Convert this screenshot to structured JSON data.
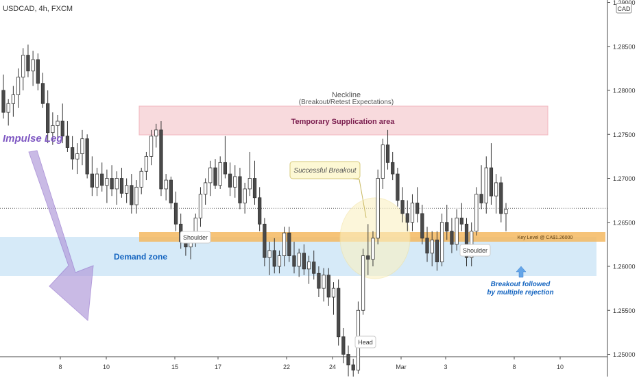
{
  "header": {
    "symbol": "USDCAD, 4h, FXCM"
  },
  "price_axis": {
    "currency_badge": "CAD"
  },
  "chart_data": {
    "type": "candlestick",
    "title": "USDCAD, 4h, FXCM",
    "ylim": [
      1.2475,
      1.29
    ],
    "yticks": [
      "1.25000",
      "1.25500",
      "1.26000",
      "1.26500",
      "1.27000",
      "1.27500",
      "1.28000",
      "1.28500",
      "1.29000"
    ],
    "xticks": [
      "8",
      "10",
      "15",
      "17",
      "22",
      "24",
      "Mar",
      "3",
      "8",
      "10"
    ],
    "last_price_line": 1.2666,
    "candles": [
      {
        "o": 1.28,
        "h": 1.2818,
        "l": 1.2768,
        "c": 1.2775
      },
      {
        "o": 1.2775,
        "h": 1.279,
        "l": 1.276,
        "c": 1.2785
      },
      {
        "o": 1.2785,
        "h": 1.2805,
        "l": 1.277,
        "c": 1.2795
      },
      {
        "o": 1.2795,
        "h": 1.2825,
        "l": 1.278,
        "c": 1.2815
      },
      {
        "o": 1.2815,
        "h": 1.2848,
        "l": 1.28,
        "c": 1.284
      },
      {
        "o": 1.284,
        "h": 1.2852,
        "l": 1.2815,
        "c": 1.2822
      },
      {
        "o": 1.2822,
        "h": 1.2845,
        "l": 1.2805,
        "c": 1.2835
      },
      {
        "o": 1.2835,
        "h": 1.2842,
        "l": 1.28,
        "c": 1.2808
      },
      {
        "o": 1.2808,
        "h": 1.282,
        "l": 1.278,
        "c": 1.2785
      },
      {
        "o": 1.2785,
        "h": 1.28,
        "l": 1.274,
        "c": 1.2752
      },
      {
        "o": 1.2752,
        "h": 1.2775,
        "l": 1.2738,
        "c": 1.276
      },
      {
        "o": 1.276,
        "h": 1.2772,
        "l": 1.2745,
        "c": 1.2765
      },
      {
        "o": 1.2765,
        "h": 1.2785,
        "l": 1.274,
        "c": 1.2748
      },
      {
        "o": 1.2748,
        "h": 1.2765,
        "l": 1.273,
        "c": 1.2735
      },
      {
        "o": 1.2735,
        "h": 1.2748,
        "l": 1.271,
        "c": 1.2722
      },
      {
        "o": 1.2722,
        "h": 1.274,
        "l": 1.2705,
        "c": 1.2728
      },
      {
        "o": 1.2728,
        "h": 1.2755,
        "l": 1.2715,
        "c": 1.2745
      },
      {
        "o": 1.2745,
        "h": 1.275,
        "l": 1.27,
        "c": 1.2705
      },
      {
        "o": 1.2705,
        "h": 1.2725,
        "l": 1.268,
        "c": 1.269
      },
      {
        "o": 1.269,
        "h": 1.2712,
        "l": 1.268,
        "c": 1.2705
      },
      {
        "o": 1.2705,
        "h": 1.2718,
        "l": 1.2685,
        "c": 1.2692
      },
      {
        "o": 1.2692,
        "h": 1.271,
        "l": 1.2672,
        "c": 1.27
      },
      {
        "o": 1.27,
        "h": 1.2715,
        "l": 1.268,
        "c": 1.2688
      },
      {
        "o": 1.2688,
        "h": 1.2708,
        "l": 1.267,
        "c": 1.27
      },
      {
        "o": 1.27,
        "h": 1.2712,
        "l": 1.2678,
        "c": 1.2683
      },
      {
        "o": 1.2683,
        "h": 1.27,
        "l": 1.2672,
        "c": 1.2692
      },
      {
        "o": 1.2692,
        "h": 1.2705,
        "l": 1.266,
        "c": 1.267
      },
      {
        "o": 1.267,
        "h": 1.2698,
        "l": 1.266,
        "c": 1.269
      },
      {
        "o": 1.269,
        "h": 1.2712,
        "l": 1.2682,
        "c": 1.2708
      },
      {
        "o": 1.2708,
        "h": 1.273,
        "l": 1.2698,
        "c": 1.2725
      },
      {
        "o": 1.2725,
        "h": 1.2755,
        "l": 1.2715,
        "c": 1.2748
      },
      {
        "o": 1.2748,
        "h": 1.2762,
        "l": 1.2735,
        "c": 1.2755
      },
      {
        "o": 1.2755,
        "h": 1.2765,
        "l": 1.268,
        "c": 1.2688
      },
      {
        "o": 1.2688,
        "h": 1.2705,
        "l": 1.2675,
        "c": 1.2698
      },
      {
        "o": 1.2698,
        "h": 1.2702,
        "l": 1.2665,
        "c": 1.2672
      },
      {
        "o": 1.2672,
        "h": 1.2685,
        "l": 1.264,
        "c": 1.2648
      },
      {
        "o": 1.2648,
        "h": 1.266,
        "l": 1.262,
        "c": 1.2628
      },
      {
        "o": 1.2628,
        "h": 1.264,
        "l": 1.2612,
        "c": 1.2622
      },
      {
        "o": 1.2622,
        "h": 1.2635,
        "l": 1.2608,
        "c": 1.263
      },
      {
        "o": 1.263,
        "h": 1.266,
        "l": 1.2622,
        "c": 1.2655
      },
      {
        "o": 1.2655,
        "h": 1.269,
        "l": 1.2645,
        "c": 1.2682
      },
      {
        "o": 1.2682,
        "h": 1.27,
        "l": 1.267,
        "c": 1.2695
      },
      {
        "o": 1.2695,
        "h": 1.272,
        "l": 1.268,
        "c": 1.2712
      },
      {
        "o": 1.2712,
        "h": 1.2722,
        "l": 1.2688,
        "c": 1.2692
      },
      {
        "o": 1.2692,
        "h": 1.2725,
        "l": 1.2688,
        "c": 1.2718
      },
      {
        "o": 1.2718,
        "h": 1.2748,
        "l": 1.27,
        "c": 1.2705
      },
      {
        "o": 1.2705,
        "h": 1.2718,
        "l": 1.268,
        "c": 1.269
      },
      {
        "o": 1.269,
        "h": 1.2715,
        "l": 1.2678,
        "c": 1.2702
      },
      {
        "o": 1.2702,
        "h": 1.2712,
        "l": 1.2665,
        "c": 1.2672
      },
      {
        "o": 1.2672,
        "h": 1.2695,
        "l": 1.266,
        "c": 1.2688
      },
      {
        "o": 1.2688,
        "h": 1.273,
        "l": 1.268,
        "c": 1.27
      },
      {
        "o": 1.27,
        "h": 1.272,
        "l": 1.267,
        "c": 1.2678
      },
      {
        "o": 1.2678,
        "h": 1.269,
        "l": 1.264,
        "c": 1.2648
      },
      {
        "o": 1.2648,
        "h": 1.2655,
        "l": 1.26,
        "c": 1.261
      },
      {
        "o": 1.261,
        "h": 1.2628,
        "l": 1.259,
        "c": 1.2618
      },
      {
        "o": 1.2618,
        "h": 1.2632,
        "l": 1.2592,
        "c": 1.26
      },
      {
        "o": 1.26,
        "h": 1.2618,
        "l": 1.2592,
        "c": 1.2612
      },
      {
        "o": 1.2612,
        "h": 1.2645,
        "l": 1.26,
        "c": 1.2638
      },
      {
        "o": 1.2638,
        "h": 1.2645,
        "l": 1.2605,
        "c": 1.2612
      },
      {
        "o": 1.2612,
        "h": 1.2628,
        "l": 1.2592,
        "c": 1.26
      },
      {
        "o": 1.26,
        "h": 1.262,
        "l": 1.2588,
        "c": 1.2615
      },
      {
        "o": 1.2615,
        "h": 1.2625,
        "l": 1.259,
        "c": 1.2597
      },
      {
        "o": 1.2597,
        "h": 1.2612,
        "l": 1.258,
        "c": 1.2605
      },
      {
        "o": 1.2605,
        "h": 1.2618,
        "l": 1.2585,
        "c": 1.2592
      },
      {
        "o": 1.2592,
        "h": 1.26,
        "l": 1.2565,
        "c": 1.2575
      },
      {
        "o": 1.2575,
        "h": 1.2598,
        "l": 1.256,
        "c": 1.259
      },
      {
        "o": 1.259,
        "h": 1.2598,
        "l": 1.2555,
        "c": 1.2565
      },
      {
        "o": 1.2565,
        "h": 1.2582,
        "l": 1.2545,
        "c": 1.2575
      },
      {
        "o": 1.2575,
        "h": 1.2585,
        "l": 1.251,
        "c": 1.252
      },
      {
        "o": 1.252,
        "h": 1.253,
        "l": 1.249,
        "c": 1.25
      },
      {
        "o": 1.25,
        "h": 1.251,
        "l": 1.2475,
        "c": 1.2488
      },
      {
        "o": 1.2488,
        "h": 1.2495,
        "l": 1.247,
        "c": 1.2482
      },
      {
        "o": 1.2482,
        "h": 1.256,
        "l": 1.2478,
        "c": 1.255
      },
      {
        "o": 1.255,
        "h": 1.262,
        "l": 1.2545,
        "c": 1.2612
      },
      {
        "o": 1.2612,
        "h": 1.2648,
        "l": 1.259,
        "c": 1.2608
      },
      {
        "o": 1.2608,
        "h": 1.264,
        "l": 1.26,
        "c": 1.2632
      },
      {
        "o": 1.2632,
        "h": 1.271,
        "l": 1.2625,
        "c": 1.27
      },
      {
        "o": 1.27,
        "h": 1.2745,
        "l": 1.2688,
        "c": 1.2738
      },
      {
        "o": 1.2738,
        "h": 1.2755,
        "l": 1.271,
        "c": 1.2718
      },
      {
        "o": 1.2718,
        "h": 1.273,
        "l": 1.2698,
        "c": 1.2705
      },
      {
        "o": 1.2705,
        "h": 1.2712,
        "l": 1.2668,
        "c": 1.2675
      },
      {
        "o": 1.2675,
        "h": 1.269,
        "l": 1.265,
        "c": 1.266
      },
      {
        "o": 1.266,
        "h": 1.2675,
        "l": 1.264,
        "c": 1.265
      },
      {
        "o": 1.265,
        "h": 1.2682,
        "l": 1.264,
        "c": 1.2672
      },
      {
        "o": 1.2672,
        "h": 1.269,
        "l": 1.265,
        "c": 1.266
      },
      {
        "o": 1.266,
        "h": 1.267,
        "l": 1.2625,
        "c": 1.2632
      },
      {
        "o": 1.2632,
        "h": 1.2645,
        "l": 1.2605,
        "c": 1.2615
      },
      {
        "o": 1.2615,
        "h": 1.264,
        "l": 1.26,
        "c": 1.263
      },
      {
        "o": 1.263,
        "h": 1.264,
        "l": 1.2595,
        "c": 1.2605
      },
      {
        "o": 1.2605,
        "h": 1.266,
        "l": 1.26,
        "c": 1.265
      },
      {
        "o": 1.265,
        "h": 1.267,
        "l": 1.263,
        "c": 1.264
      },
      {
        "o": 1.264,
        "h": 1.2655,
        "l": 1.2615,
        "c": 1.2625
      },
      {
        "o": 1.2625,
        "h": 1.2665,
        "l": 1.2618,
        "c": 1.2655
      },
      {
        "o": 1.2655,
        "h": 1.2672,
        "l": 1.264,
        "c": 1.2648
      },
      {
        "o": 1.2648,
        "h": 1.2655,
        "l": 1.26,
        "c": 1.261
      },
      {
        "o": 1.261,
        "h": 1.265,
        "l": 1.26,
        "c": 1.264
      },
      {
        "o": 1.264,
        "h": 1.269,
        "l": 1.2635,
        "c": 1.2682
      },
      {
        "o": 1.2682,
        "h": 1.2715,
        "l": 1.2665,
        "c": 1.2672
      },
      {
        "o": 1.2672,
        "h": 1.2725,
        "l": 1.266,
        "c": 1.2712
      },
      {
        "o": 1.2712,
        "h": 1.274,
        "l": 1.267,
        "c": 1.268
      },
      {
        "o": 1.268,
        "h": 1.2705,
        "l": 1.266,
        "c": 1.2695
      },
      {
        "o": 1.2695,
        "h": 1.2702,
        "l": 1.265,
        "c": 1.266
      },
      {
        "o": 1.266,
        "h": 1.2672,
        "l": 1.264,
        "c": 1.2665
      }
    ],
    "annotations": {
      "neckline_title": "Neckline",
      "neckline_sub": "(Breakout/Retest Expectations)",
      "supply_label": "Temporary Supplication area",
      "demand_label": "Demand zone",
      "impulse_label": "Impulse Leg",
      "key_level_label": "Key Level @ CA$1.26000",
      "breakout_callout": "Successful Breakout",
      "shoulder_left": "Shoulder",
      "shoulder_right": "Shoulder",
      "head": "Head",
      "rejection_line1": "Breakout followed",
      "rejection_line2": "by multiple rejection"
    },
    "colors": {
      "up": "#ffffff",
      "down": "#4a4a4a",
      "supply_zone": "#f8d7da",
      "demand_zone": "#cfe6f7",
      "key_level": "#f5b860",
      "impulse_arrow": "#b39ddb",
      "accent_blue": "#1565c0",
      "rejection_arrow": "#64a5e8"
    }
  }
}
